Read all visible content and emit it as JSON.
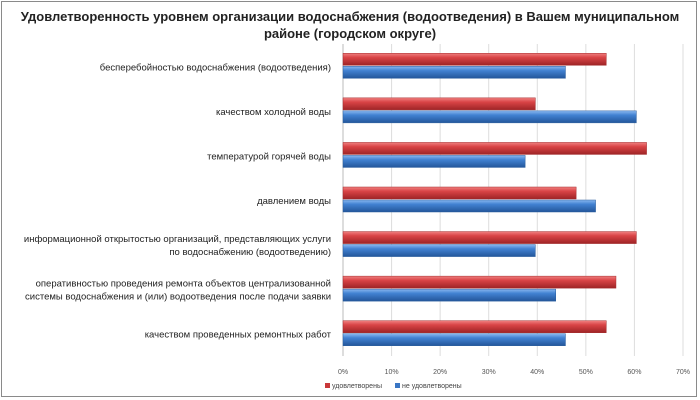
{
  "chart_data": {
    "type": "bar",
    "orientation": "horizontal",
    "title": "Удовлетворенность уровнем организации водоснабжения (водоотведения) в Вашем муниципальном районе (городском округе)",
    "categories": [
      [
        "бесперебойностью  водоснабжения (водоотведения)"
      ],
      [
        "качеством холодной воды"
      ],
      [
        "температурой горячей воды"
      ],
      [
        "давлением воды"
      ],
      [
        "информационной открытостью организаций, представляющих услуги",
        "по водоснабжению (водоотведению)"
      ],
      [
        "оперативностью проведения ремонта объектов централизованной",
        "системы водоснабжения и (или) водоотведения после подачи заявки"
      ],
      [
        "качеством проведенных ремонтных работ"
      ]
    ],
    "series": [
      {
        "name": "удовлетворены",
        "color": "#c9383a",
        "values": [
          54.2,
          39.6,
          62.5,
          48.0,
          60.4,
          56.2,
          54.2
        ]
      },
      {
        "name": "не удовлетворены",
        "color": "#3a76c4",
        "values": [
          45.8,
          60.4,
          37.5,
          52.0,
          39.6,
          43.8,
          45.8
        ]
      }
    ],
    "xlim": [
      0,
      70
    ],
    "xticks": [
      "0%",
      "10%",
      "20%",
      "30%",
      "40%",
      "50%",
      "60%",
      "70%"
    ],
    "grid": true,
    "legend": "bottom"
  }
}
